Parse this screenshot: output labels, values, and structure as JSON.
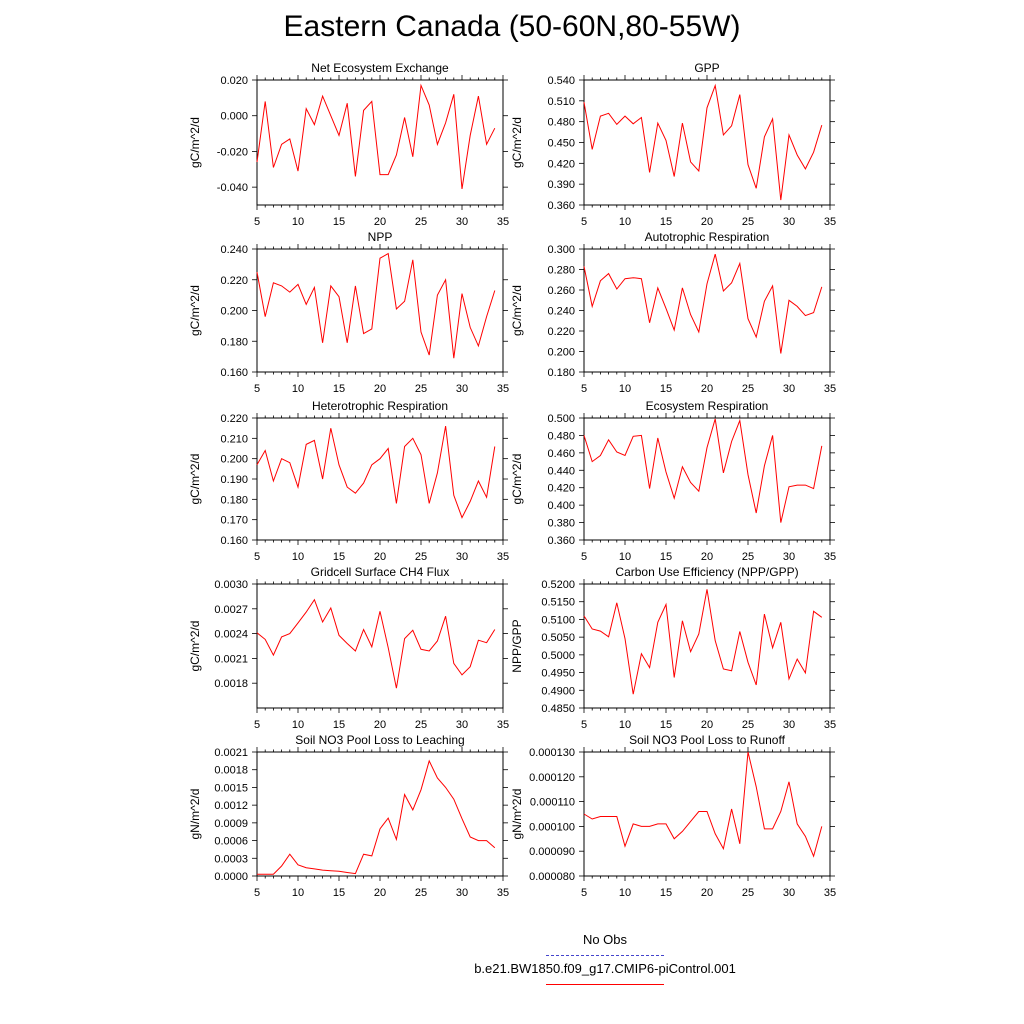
{
  "page": {
    "title": "Eastern Canada (50-60N,80-55W)"
  },
  "legend": {
    "entries": [
      {
        "label": "No Obs",
        "color": "#4444cc",
        "dash": "dashed"
      },
      {
        "label": "b.e21.BW1850.f09_g17.CMIP6-piControl.001",
        "color": "#ff0000",
        "dash": "solid"
      }
    ]
  },
  "chart_data": [
    {
      "type": "line",
      "title": "Net Ecosystem Exchange",
      "ylabel": "gC/m^2/d",
      "xlim": [
        5,
        35
      ],
      "xticks": [
        5,
        10,
        15,
        20,
        25,
        30,
        35
      ],
      "ylim": [
        -0.05,
        0.02
      ],
      "yticks": [
        -0.04,
        -0.02,
        0.0,
        0.02
      ],
      "yticklabels": [
        "-0.040",
        "-0.020",
        "0.000",
        "0.020"
      ],
      "color": "#ff0000",
      "x": [
        5,
        6,
        7,
        8,
        9,
        10,
        11,
        12,
        13,
        14,
        15,
        16,
        17,
        18,
        19,
        20,
        21,
        22,
        23,
        24,
        25,
        26,
        27,
        28,
        29,
        30,
        31,
        32,
        33,
        34
      ],
      "values": [
        -0.026,
        0.008,
        -0.029,
        -0.016,
        -0.013,
        -0.031,
        0.004,
        -0.005,
        0.011,
        0.0,
        -0.011,
        0.007,
        -0.034,
        0.003,
        0.008,
        -0.033,
        -0.033,
        -0.022,
        -0.001,
        -0.023,
        0.017,
        0.006,
        -0.016,
        -0.004,
        0.012,
        -0.041,
        -0.011,
        0.011,
        -0.016,
        -0.007
      ]
    },
    {
      "type": "line",
      "title": "GPP",
      "ylabel": "gC/m^2/d",
      "xlim": [
        5,
        35
      ],
      "xticks": [
        5,
        10,
        15,
        20,
        25,
        30,
        35
      ],
      "ylim": [
        0.36,
        0.54
      ],
      "yticks": [
        0.36,
        0.39,
        0.42,
        0.45,
        0.48,
        0.51,
        0.54
      ],
      "yticklabels": [
        "0.360",
        "0.390",
        "0.420",
        "0.450",
        "0.480",
        "0.510",
        "0.540"
      ],
      "color": "#ff0000",
      "x": [
        5,
        6,
        7,
        8,
        9,
        10,
        11,
        12,
        13,
        14,
        15,
        16,
        17,
        18,
        19,
        20,
        21,
        22,
        23,
        24,
        25,
        26,
        27,
        28,
        29,
        30,
        31,
        32,
        33,
        34
      ],
      "values": [
        0.508,
        0.44,
        0.488,
        0.492,
        0.476,
        0.488,
        0.477,
        0.486,
        0.407,
        0.478,
        0.453,
        0.401,
        0.478,
        0.422,
        0.409,
        0.5,
        0.532,
        0.461,
        0.474,
        0.519,
        0.418,
        0.384,
        0.458,
        0.484,
        0.367,
        0.461,
        0.432,
        0.412,
        0.436,
        0.475
      ]
    },
    {
      "type": "line",
      "title": "NPP",
      "ylabel": "gC/m^2/d",
      "xlim": [
        5,
        35
      ],
      "xticks": [
        5,
        10,
        15,
        20,
        25,
        30,
        35
      ],
      "ylim": [
        0.16,
        0.24
      ],
      "yticks": [
        0.16,
        0.18,
        0.2,
        0.22,
        0.24
      ],
      "yticklabels": [
        "0.160",
        "0.180",
        "0.200",
        "0.220",
        "0.240"
      ],
      "color": "#ff0000",
      "x": [
        5,
        6,
        7,
        8,
        9,
        10,
        11,
        12,
        13,
        14,
        15,
        16,
        17,
        18,
        19,
        20,
        21,
        22,
        23,
        24,
        25,
        26,
        27,
        28,
        29,
        30,
        31,
        32,
        33,
        34
      ],
      "values": [
        0.225,
        0.196,
        0.218,
        0.216,
        0.212,
        0.217,
        0.204,
        0.215,
        0.179,
        0.216,
        0.209,
        0.179,
        0.216,
        0.185,
        0.188,
        0.234,
        0.237,
        0.201,
        0.206,
        0.233,
        0.186,
        0.171,
        0.21,
        0.22,
        0.169,
        0.211,
        0.189,
        0.177,
        0.196,
        0.213
      ]
    },
    {
      "type": "line",
      "title": "Autotrophic Respiration",
      "ylabel": "gC/m^2/d",
      "xlim": [
        5,
        35
      ],
      "xticks": [
        5,
        10,
        15,
        20,
        25,
        30,
        35
      ],
      "ylim": [
        0.18,
        0.3
      ],
      "yticks": [
        0.18,
        0.2,
        0.22,
        0.24,
        0.26,
        0.28,
        0.3
      ],
      "yticklabels": [
        "0.180",
        "0.200",
        "0.220",
        "0.240",
        "0.260",
        "0.280",
        "0.300"
      ],
      "color": "#ff0000",
      "x": [
        5,
        6,
        7,
        8,
        9,
        10,
        11,
        12,
        13,
        14,
        15,
        16,
        17,
        18,
        19,
        20,
        21,
        22,
        23,
        24,
        25,
        26,
        27,
        28,
        29,
        30,
        31,
        32,
        33,
        34
      ],
      "values": [
        0.283,
        0.244,
        0.269,
        0.276,
        0.261,
        0.271,
        0.272,
        0.271,
        0.228,
        0.262,
        0.242,
        0.221,
        0.262,
        0.236,
        0.219,
        0.266,
        0.295,
        0.259,
        0.267,
        0.286,
        0.232,
        0.214,
        0.249,
        0.264,
        0.198,
        0.25,
        0.244,
        0.235,
        0.238,
        0.263
      ]
    },
    {
      "type": "line",
      "title": "Heterotrophic Respiration",
      "ylabel": "gC/m^2/d",
      "xlim": [
        5,
        35
      ],
      "xticks": [
        5,
        10,
        15,
        20,
        25,
        30,
        35
      ],
      "ylim": [
        0.16,
        0.22
      ],
      "yticks": [
        0.16,
        0.17,
        0.18,
        0.19,
        0.2,
        0.21,
        0.22
      ],
      "yticklabels": [
        "0.160",
        "0.170",
        "0.180",
        "0.190",
        "0.200",
        "0.210",
        "0.220"
      ],
      "color": "#ff0000",
      "x": [
        5,
        6,
        7,
        8,
        9,
        10,
        11,
        12,
        13,
        14,
        15,
        16,
        17,
        18,
        19,
        20,
        21,
        22,
        23,
        24,
        25,
        26,
        27,
        28,
        29,
        30,
        31,
        32,
        33,
        34
      ],
      "values": [
        0.197,
        0.204,
        0.189,
        0.2,
        0.198,
        0.186,
        0.207,
        0.209,
        0.19,
        0.215,
        0.197,
        0.186,
        0.183,
        0.188,
        0.197,
        0.2,
        0.205,
        0.178,
        0.206,
        0.21,
        0.202,
        0.178,
        0.193,
        0.216,
        0.182,
        0.171,
        0.179,
        0.189,
        0.181,
        0.206
      ]
    },
    {
      "type": "line",
      "title": "Ecosystem Respiration",
      "ylabel": "gC/m^2/d",
      "xlim": [
        5,
        35
      ],
      "xticks": [
        5,
        10,
        15,
        20,
        25,
        30,
        35
      ],
      "ylim": [
        0.36,
        0.5
      ],
      "yticks": [
        0.36,
        0.38,
        0.4,
        0.42,
        0.44,
        0.46,
        0.48,
        0.5
      ],
      "yticklabels": [
        "0.360",
        "0.380",
        "0.400",
        "0.420",
        "0.440",
        "0.460",
        "0.480",
        "0.500"
      ],
      "color": "#ff0000",
      "x": [
        5,
        6,
        7,
        8,
        9,
        10,
        11,
        12,
        13,
        14,
        15,
        16,
        17,
        18,
        19,
        20,
        21,
        22,
        23,
        24,
        25,
        26,
        27,
        28,
        29,
        30,
        31,
        32,
        33,
        34
      ],
      "values": [
        0.48,
        0.45,
        0.457,
        0.475,
        0.461,
        0.457,
        0.479,
        0.48,
        0.419,
        0.477,
        0.438,
        0.408,
        0.444,
        0.426,
        0.416,
        0.466,
        0.499,
        0.437,
        0.473,
        0.497,
        0.435,
        0.391,
        0.445,
        0.48,
        0.38,
        0.421,
        0.423,
        0.423,
        0.419,
        0.468
      ]
    },
    {
      "type": "line",
      "title": "Gridcell Surface CH4 Flux",
      "ylabel": "gC/m^2/d",
      "xlim": [
        5,
        35
      ],
      "xticks": [
        5,
        10,
        15,
        20,
        25,
        30,
        35
      ],
      "ylim": [
        0.0015,
        0.003
      ],
      "yticks": [
        0.0018,
        0.0021,
        0.0024,
        0.0027,
        0.003
      ],
      "yticklabels": [
        "0.0018",
        "0.0021",
        "0.0024",
        "0.0027",
        "0.0030"
      ],
      "color": "#ff0000",
      "x": [
        5,
        6,
        7,
        8,
        9,
        10,
        11,
        12,
        13,
        14,
        15,
        16,
        17,
        18,
        19,
        20,
        21,
        22,
        23,
        24,
        25,
        26,
        27,
        28,
        29,
        30,
        31,
        32,
        33,
        34
      ],
      "values": [
        0.00241,
        0.00233,
        0.00214,
        0.00236,
        0.0024,
        0.00253,
        0.00266,
        0.00281,
        0.00254,
        0.00271,
        0.00238,
        0.00228,
        0.00219,
        0.00245,
        0.00224,
        0.00267,
        0.00223,
        0.00174,
        0.00234,
        0.00244,
        0.00221,
        0.00219,
        0.00231,
        0.00261,
        0.00204,
        0.0019,
        0.002,
        0.00232,
        0.00229,
        0.00245
      ]
    },
    {
      "type": "line",
      "title": "Carbon Use Efficiency (NPP/GPP)",
      "ylabel": "NPP/GPP",
      "xlim": [
        5,
        35
      ],
      "xticks": [
        5,
        10,
        15,
        20,
        25,
        30,
        35
      ],
      "ylim": [
        0.485,
        0.52
      ],
      "yticks": [
        0.485,
        0.49,
        0.495,
        0.5,
        0.505,
        0.51,
        0.515,
        0.52
      ],
      "yticklabels": [
        "0.4850",
        "0.4900",
        "0.4950",
        "0.5000",
        "0.5050",
        "0.5100",
        "0.5150",
        "0.5200"
      ],
      "color": "#ff0000",
      "x": [
        5,
        6,
        7,
        8,
        9,
        10,
        11,
        12,
        13,
        14,
        15,
        16,
        17,
        18,
        19,
        20,
        21,
        22,
        23,
        24,
        25,
        26,
        27,
        28,
        29,
        30,
        31,
        32,
        33,
        34
      ],
      "values": [
        0.511,
        0.5073,
        0.5067,
        0.5051,
        0.5147,
        0.5046,
        0.4889,
        0.5003,
        0.4964,
        0.5092,
        0.5142,
        0.4936,
        0.5096,
        0.5009,
        0.5059,
        0.5185,
        0.504,
        0.496,
        0.4955,
        0.5066,
        0.4979,
        0.4915,
        0.5115,
        0.502,
        0.5092,
        0.4932,
        0.4988,
        0.4949,
        0.5123,
        0.5106
      ]
    },
    {
      "type": "line",
      "title": "Soil NO3 Pool Loss to Leaching",
      "ylabel": "gN/m^2/d",
      "xlim": [
        5,
        35
      ],
      "xticks": [
        5,
        10,
        15,
        20,
        25,
        30,
        35
      ],
      "ylim": [
        0.0,
        0.0021
      ],
      "yticks": [
        0.0,
        0.0003,
        0.0006,
        0.0009,
        0.0012,
        0.0015,
        0.0018,
        0.0021
      ],
      "yticklabels": [
        "0.0000",
        "0.0003",
        "0.0006",
        "0.0009",
        "0.0012",
        "0.0015",
        "0.0018",
        "0.0021"
      ],
      "color": "#ff0000",
      "x": [
        5,
        6,
        7,
        8,
        9,
        10,
        11,
        12,
        13,
        14,
        15,
        16,
        17,
        18,
        19,
        20,
        21,
        22,
        23,
        24,
        25,
        26,
        27,
        28,
        29,
        30,
        31,
        32,
        33,
        34
      ],
      "values": [
        3e-05,
        3e-05,
        3e-05,
        0.00017,
        0.00037,
        0.00019,
        0.00014,
        0.00012,
        0.0001,
        9e-05,
        8e-05,
        6e-05,
        4e-05,
        0.00037,
        0.00034,
        0.0008,
        0.00098,
        0.00062,
        0.00138,
        0.00112,
        0.00146,
        0.00195,
        0.00166,
        0.0015,
        0.0013,
        0.00097,
        0.00066,
        0.0006,
        0.0006,
        0.00048
      ]
    },
    {
      "type": "line",
      "title": "Soil NO3 Pool Loss to Runoff",
      "ylabel": "gN/m^2/d",
      "xlim": [
        5,
        35
      ],
      "xticks": [
        5,
        10,
        15,
        20,
        25,
        30,
        35
      ],
      "ylim": [
        8e-05,
        0.00013
      ],
      "yticks": [
        8e-05,
        9e-05,
        0.0001,
        0.00011,
        0.00012,
        0.00013
      ],
      "yticklabels": [
        "0.000080",
        "0.000090",
        "0.000100",
        "0.000110",
        "0.000120",
        "0.000130"
      ],
      "color": "#ff0000",
      "x": [
        5,
        6,
        7,
        8,
        9,
        10,
        11,
        12,
        13,
        14,
        15,
        16,
        17,
        18,
        19,
        20,
        21,
        22,
        23,
        24,
        25,
        26,
        27,
        28,
        29,
        30,
        31,
        32,
        33,
        34
      ],
      "values": [
        0.000105,
        0.000103,
        0.000104,
        0.000104,
        0.000104,
        9.2e-05,
        0.000101,
        0.0001,
        0.0001,
        0.000101,
        0.000101,
        9.5e-05,
        9.8e-05,
        0.000102,
        0.000106,
        0.000106,
        9.7e-05,
        9.1e-05,
        0.000107,
        9.3e-05,
        0.00013,
        0.000116,
        9.9e-05,
        9.9e-05,
        0.000106,
        0.000118,
        0.000101,
        9.6e-05,
        8.8e-05,
        0.0001
      ]
    }
  ]
}
